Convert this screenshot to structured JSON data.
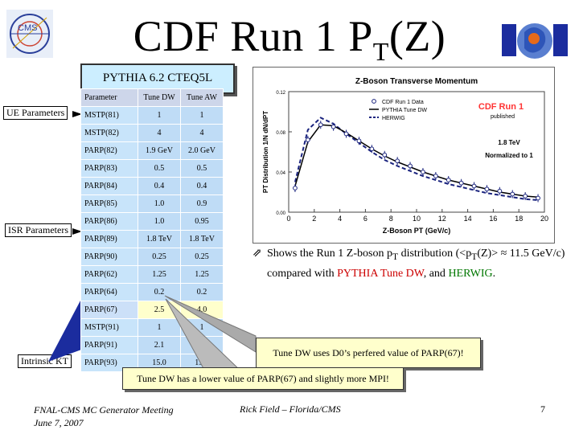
{
  "title": {
    "main": "CDF Run 1 P",
    "sub": "T",
    "tail": "(Z)"
  },
  "pythia_label": "PYTHIA 6.2 CTEQ5L",
  "table": {
    "headers": [
      "Parameter",
      "Tune DW",
      "Tune AW"
    ],
    "rows": [
      [
        "MSTP(81)",
        "1",
        "1"
      ],
      [
        "MSTP(82)",
        "4",
        "4"
      ],
      [
        "PARP(82)",
        "1.9 GeV",
        "2.0 GeV"
      ],
      [
        "PARP(83)",
        "0.5",
        "0.5"
      ],
      [
        "PARP(84)",
        "0.4",
        "0.4"
      ],
      [
        "PARP(85)",
        "1.0",
        "0.9"
      ],
      [
        "PARP(86)",
        "1.0",
        "0.95"
      ],
      [
        "PARP(89)",
        "1.8 TeV",
        "1.8 TeV"
      ],
      [
        "PARP(90)",
        "0.25",
        "0.25"
      ],
      [
        "PARP(62)",
        "1.25",
        "1.25"
      ],
      [
        "PARP(64)",
        "0.2",
        "0.2"
      ],
      [
        "PARP(67)",
        "2.5",
        "4.0"
      ],
      [
        "MSTP(91)",
        "1",
        "1"
      ],
      [
        "PARP(91)",
        "2.1",
        "2.1"
      ],
      [
        "PARP(93)",
        "15.0",
        "15.0"
      ]
    ]
  },
  "labels": {
    "ue": "UE Parameters",
    "isr": "ISR Parameters",
    "intrinsic": "Intrinsic KT"
  },
  "chart_data": {
    "type": "scatter",
    "title": "Z-Boson Transverse Momentum",
    "xlabel": "Z-Boson PT (GeV/c)",
    "ylabel": "PT Distribution 1/N dN/dPT",
    "xlim": [
      0,
      20
    ],
    "ylim": [
      0,
      0.12
    ],
    "xticks": [
      "0",
      "2",
      "4",
      "6",
      "8",
      "10",
      "12",
      "14",
      "16",
      "18",
      "20"
    ],
    "yticks": [
      "0.00",
      "0.04",
      "0.08",
      "0.12"
    ],
    "legend": [
      "CDF Run 1 Data",
      "PYTHIA Tune DW",
      "HERWIG"
    ],
    "annotations": [
      "CDF Run 1",
      "published",
      "1.8 TeV",
      "Normalized to 1"
    ],
    "series": [
      {
        "name": "CDF Run 1 Data",
        "x": [
          0.5,
          1.5,
          2.5,
          3.5,
          4.5,
          5.5,
          6.5,
          7.5,
          8.5,
          9.5,
          10.5,
          11.5,
          12.5,
          13.5,
          14.5,
          15.5,
          16.5,
          17.5,
          18.5,
          19.5
        ],
        "y": [
          0.024,
          0.072,
          0.087,
          0.085,
          0.078,
          0.071,
          0.063,
          0.057,
          0.051,
          0.046,
          0.04,
          0.036,
          0.032,
          0.029,
          0.026,
          0.023,
          0.021,
          0.018,
          0.016,
          0.014
        ]
      },
      {
        "name": "PYTHIA Tune DW",
        "x": [
          0.5,
          1.5,
          2.5,
          3.5,
          4.5,
          5.5,
          6.5,
          7.5,
          8.5,
          9.5,
          10.5,
          11.5,
          12.5,
          13.5,
          14.5,
          15.5,
          16.5,
          17.5,
          18.5,
          19.5
        ],
        "y": [
          0.026,
          0.07,
          0.087,
          0.086,
          0.079,
          0.071,
          0.063,
          0.056,
          0.05,
          0.045,
          0.04,
          0.036,
          0.032,
          0.029,
          0.026,
          0.023,
          0.02,
          0.018,
          0.016,
          0.015
        ]
      },
      {
        "name": "HERWIG",
        "x": [
          0.5,
          1.5,
          2.5,
          3.5,
          4.5,
          5.5,
          6.5,
          7.5,
          8.5,
          9.5,
          10.5,
          11.5,
          12.5,
          13.5,
          14.5,
          15.5,
          16.5,
          17.5,
          18.5,
          19.5
        ],
        "y": [
          0.03,
          0.082,
          0.094,
          0.088,
          0.078,
          0.069,
          0.06,
          0.052,
          0.046,
          0.041,
          0.036,
          0.032,
          0.028,
          0.025,
          0.022,
          0.019,
          0.017,
          0.015,
          0.013,
          0.012
        ]
      }
    ],
    "colors": {
      "data": "#1a237e",
      "dw": "#000000",
      "herwig": "#1a237e",
      "accent": "#ff3333"
    }
  },
  "bullet": {
    "prefix": "Shows the Run 1 Z-boson p",
    "sub": "T",
    "mid1": " distribution (<p",
    "sub2": "T",
    "mid2": "(Z)> ≈ 11.5 GeV/c) compared with ",
    "pythia": "PYTHIA Tune DW",
    "and": ", and ",
    "herwig": "HERWIG",
    "end": "."
  },
  "callouts": {
    "d0": "Tune DW uses D0’s perfered value of PARP(67)!",
    "mpi": "Tune DW has a lower value of PARP(67) and slightly more MPI!"
  },
  "footer": {
    "meeting": "FNAL-CMS MC Generator Meeting",
    "date": "June 7, 2007",
    "author": "Rick Field – Florida/CMS",
    "page": "7"
  }
}
